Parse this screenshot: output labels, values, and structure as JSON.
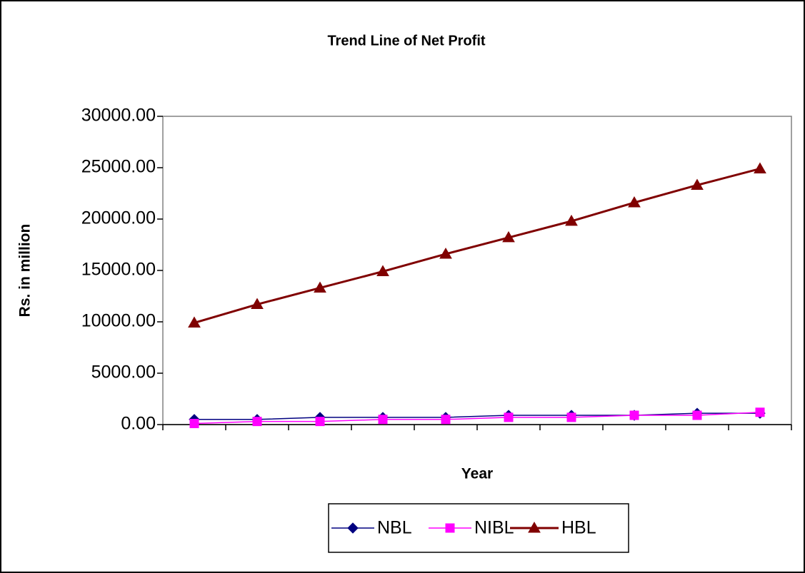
{
  "chart_data": {
    "type": "line",
    "title": "Trend Line of Net Profit",
    "x_label": "Year",
    "y_label": "Rs. in million",
    "categories": [
      null,
      null,
      null,
      null,
      null,
      null,
      null,
      null,
      null,
      null
    ],
    "series": [
      {
        "name": "NBL",
        "color": "#000080",
        "marker": "diamond",
        "values": [
          500,
          500,
          700,
          700,
          700,
          900,
          900,
          900,
          1100,
          1100
        ]
      },
      {
        "name": "NIBL",
        "color": "#ff00ff",
        "marker": "square",
        "values": [
          100,
          300,
          300,
          500,
          500,
          700,
          700,
          900,
          900,
          1200
        ]
      },
      {
        "name": "HBL",
        "color": "#800000",
        "marker": "triangle",
        "values": [
          9900,
          11700,
          13300,
          14900,
          16600,
          18200,
          19800,
          21600,
          23300,
          24900
        ]
      }
    ],
    "ylim": [
      0,
      30000
    ],
    "yticks": [
      {
        "value": 0,
        "label": "0.00"
      },
      {
        "value": 5000,
        "label": "5000.00"
      },
      {
        "value": 10000,
        "label": "10000.00"
      },
      {
        "value": 15000,
        "label": "15000.00"
      },
      {
        "value": 20000,
        "label": "20000.00"
      },
      {
        "value": 25000,
        "label": "25000.00"
      },
      {
        "value": 30000,
        "label": "30000.00"
      }
    ],
    "grid": false,
    "legend": "bottom"
  }
}
